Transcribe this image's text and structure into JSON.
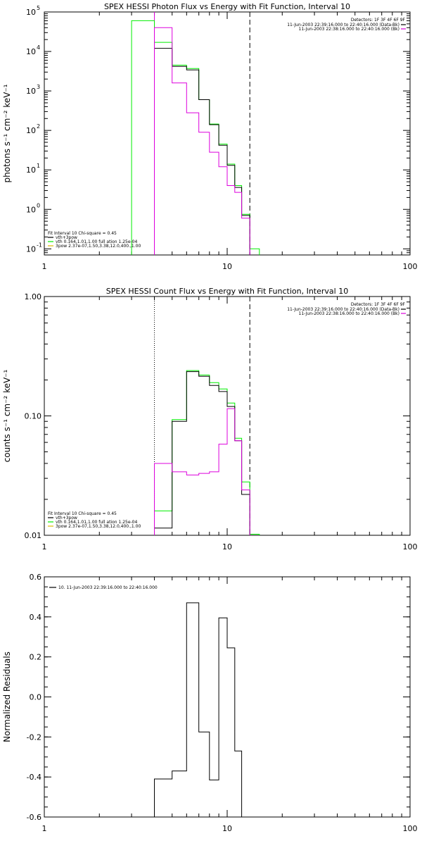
{
  "colors": {
    "data": "#000000",
    "total": "#00ee00",
    "background": "#dd00dd",
    "vth": "#00ee00",
    "spow": "#ddbb00"
  },
  "chart_data": [
    {
      "type": "line",
      "title": "SPEX HESSI Photon Flux vs Energy with Fit Function, Interval 10",
      "xlabel": "",
      "ylabel": "photons s⁻¹ cm⁻² keV⁻¹",
      "xscale": "log",
      "yscale": "log",
      "xlim": [
        1,
        100
      ],
      "ylim": [
        0.07,
        100000
      ],
      "xticks": [
        {
          "v": 1,
          "label": "1"
        },
        {
          "v": 10,
          "label": "10"
        },
        {
          "v": 100,
          "label": "100"
        }
      ],
      "yticks": [
        {
          "v": 0.1,
          "base": "10",
          "exp": "-1"
        },
        {
          "v": 1,
          "base": "10",
          "exp": "0"
        },
        {
          "v": 10,
          "base": "10",
          "exp": "1"
        },
        {
          "v": 100,
          "base": "10",
          "exp": "2"
        },
        {
          "v": 1000,
          "base": "10",
          "exp": "3"
        },
        {
          "v": 10000,
          "base": "10",
          "exp": "4"
        },
        {
          "v": 100000,
          "base": "10",
          "exp": "5"
        }
      ],
      "vlines": [
        {
          "x": 4.0,
          "style": "solid",
          "color": "#dd00dd"
        },
        {
          "x": 13.3,
          "style": "dashed",
          "color": "#000000"
        }
      ],
      "legend_tr": {
        "title": "Detectors: 1F 3F 4F 6F 9F",
        "entries": [
          {
            "text": "11-Jun-2003 22:39:16.000 to 22:40:16.000 (Data-Bk)",
            "color": "#000000"
          },
          {
            "text": "11-Jun-2003 22:38:16.000 to 22:40:16.000 (Bk)",
            "color": "#dd00dd"
          }
        ]
      },
      "legend_bl": {
        "title": "Fit Interval 10   Chi-square = 0.45",
        "entries": [
          {
            "text": "vth+3pow",
            "color": "#000000"
          },
          {
            "text": "vth 0.164,1.01,1.00  full ation 1.25e-04",
            "color": "#00ee00"
          },
          {
            "text": "3pow 2.37e-07,1.50,3.38,12.0,400.,1.00",
            "color": "#ddbb00"
          }
        ]
      },
      "series": [
        {
          "name": "vth+3pow",
          "color": "#00ee00",
          "edges": [
            3,
            4,
            5,
            6,
            7,
            8,
            9,
            10,
            11,
            12,
            13.3,
            15
          ],
          "values": [
            60000,
            17000,
            4500,
            3700,
            600,
            145,
            45,
            14,
            4,
            0.75,
            0.1
          ]
        },
        {
          "name": "Data-Bk",
          "color": "#000000",
          "edges": [
            4,
            5,
            6,
            7,
            8,
            9,
            10,
            11,
            12,
            13.3
          ],
          "values": [
            12000,
            4200,
            3400,
            600,
            140,
            42,
            13,
            3.6,
            0.7
          ]
        },
        {
          "name": "Bk",
          "color": "#dd00dd",
          "edges": [
            4,
            5,
            6,
            7,
            8,
            9,
            10,
            11,
            12,
            13.3
          ],
          "values": [
            40000,
            1600,
            280,
            90,
            28,
            12,
            4,
            2.7,
            0.6
          ]
        }
      ]
    },
    {
      "type": "line",
      "title": "SPEX HESSI Count Flux vs Energy with Fit Function, Interval 10",
      "xlabel": "",
      "ylabel": "counts s⁻¹ cm⁻² keV⁻¹",
      "xscale": "log",
      "yscale": "log",
      "xlim": [
        1,
        100
      ],
      "ylim": [
        0.01,
        1
      ],
      "xticks": [
        {
          "v": 1,
          "label": "1"
        },
        {
          "v": 10,
          "label": "10"
        },
        {
          "v": 100,
          "label": "100"
        }
      ],
      "yticks": [
        {
          "v": 0.01,
          "label": "0.01"
        },
        {
          "v": 0.1,
          "label": "0.10"
        },
        {
          "v": 1,
          "label": "1.00"
        }
      ],
      "vlines": [
        {
          "x": 4.0,
          "style": "dotted",
          "color": "#000000"
        },
        {
          "x": 13.3,
          "style": "dashed",
          "color": "#000000"
        }
      ],
      "legend_tr": {
        "title": "Detectors: 1F 3F 4F 6F 9F",
        "entries": [
          {
            "text": "11-Jun-2003 22:39:16.000 to 22:40:16.000 (Data-Bk)",
            "color": "#000000"
          },
          {
            "text": "11-Jun-2003 22:38:16.000 to 22:40:16.000 (Bk)",
            "color": "#dd00dd"
          }
        ]
      },
      "legend_bl": {
        "title": "Fit Interval 10   Chi-square = 0.45",
        "entries": [
          {
            "text": "vth+3pow",
            "color": "#000000"
          },
          {
            "text": "vth 0.164,1.01,1.00  full ation 1.25e-04",
            "color": "#00ee00"
          },
          {
            "text": "3pow 2.37e-07,1.50,3.38,12.0,400.,1.00",
            "color": "#ddbb00"
          }
        ]
      },
      "series": [
        {
          "name": "vth+3pow",
          "color": "#00ee00",
          "edges": [
            4,
            5,
            6,
            7,
            8,
            9,
            10,
            11,
            12,
            13.3,
            15
          ],
          "values": [
            0.016,
            0.093,
            0.24,
            0.22,
            0.19,
            0.168,
            0.128,
            0.065,
            0.028,
            0.0102
          ]
        },
        {
          "name": "Data-Bk",
          "color": "#000000",
          "edges": [
            4,
            5,
            6,
            7,
            8,
            9,
            10,
            11,
            12,
            13.3
          ],
          "values": [
            0.0115,
            0.09,
            0.235,
            0.215,
            0.18,
            0.16,
            0.12,
            0.062,
            0.022
          ]
        },
        {
          "name": "Bk",
          "color": "#dd00dd",
          "edges": [
            4,
            5,
            6,
            7,
            8,
            9,
            10,
            11,
            12,
            13.3
          ],
          "values": [
            0.04,
            0.034,
            0.032,
            0.033,
            0.034,
            0.058,
            0.115,
            0.062,
            0.024
          ]
        }
      ]
    },
    {
      "type": "line",
      "title": "",
      "xlabel": "",
      "ylabel": "Normalized Residuals",
      "xscale": "log",
      "yscale": "linear",
      "xlim": [
        1,
        100
      ],
      "ylim": [
        -0.6,
        0.6
      ],
      "xticks": [
        {
          "v": 1,
          "label": "1"
        },
        {
          "v": 10,
          "label": "10"
        },
        {
          "v": 100,
          "label": "100"
        }
      ],
      "yticks": [
        {
          "v": -0.6,
          "label": "-0.6"
        },
        {
          "v": -0.4,
          "label": "-0.4"
        },
        {
          "v": -0.2,
          "label": "-0.2"
        },
        {
          "v": 0,
          "label": "0.0"
        },
        {
          "v": 0.2,
          "label": "0.2"
        },
        {
          "v": 0.4,
          "label": "0.4"
        },
        {
          "v": 0.6,
          "label": "0.6"
        }
      ],
      "legend_tl": {
        "entries": [
          {
            "text": "10. 11-Jun-2003 22:39:16.000 to 22:40:16.000",
            "color": "#000000"
          }
        ]
      },
      "series": [
        {
          "name": "10. 11-Jun-2003 22:39:16.000 to 22:40:16.000",
          "color": "#000000",
          "edges": [
            4,
            5,
            6,
            7,
            8,
            9,
            10,
            11,
            12,
            13.3
          ],
          "values": [
            -0.41,
            -0.37,
            0.47,
            -0.175,
            -0.415,
            0.395,
            0.245,
            -0.27,
            -0.6
          ]
        }
      ]
    }
  ]
}
